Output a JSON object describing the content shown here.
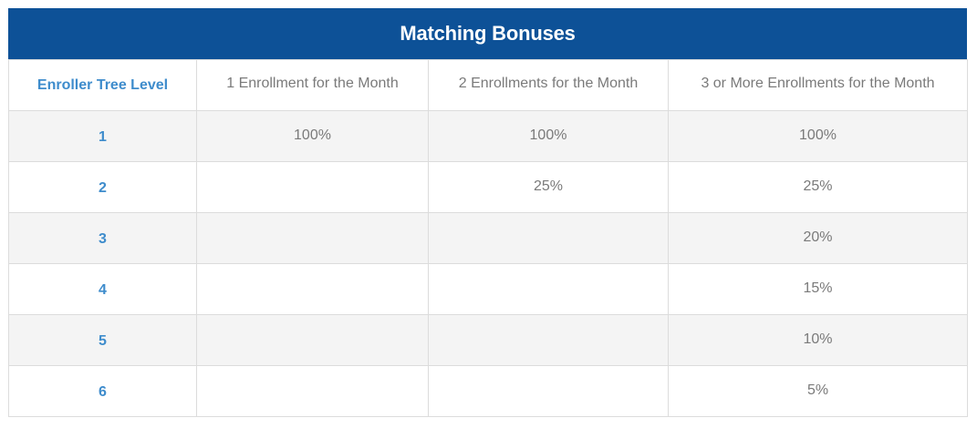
{
  "title": "Matching Bonuses",
  "columns": [
    "Enroller Tree Level",
    "1 Enrollment for the Month",
    "2 Enrollments for the Month",
    "3 or More Enrollments for the Month"
  ],
  "rows": [
    {
      "level": "1",
      "one": "100%",
      "two": "100%",
      "three": "100%"
    },
    {
      "level": "2",
      "one": "",
      "two": "25%",
      "three": "25%"
    },
    {
      "level": "3",
      "one": "",
      "two": "",
      "three": "20%"
    },
    {
      "level": "4",
      "one": "",
      "two": "",
      "three": "15%"
    },
    {
      "level": "5",
      "one": "",
      "two": "",
      "three": "10%"
    },
    {
      "level": "6",
      "one": "",
      "two": "",
      "three": "5%"
    }
  ],
  "colors": {
    "title_bg": "#0d5197",
    "level_text": "#3e8ccc",
    "body_text": "#7a7a7a",
    "stripe": "#f4f4f4"
  }
}
